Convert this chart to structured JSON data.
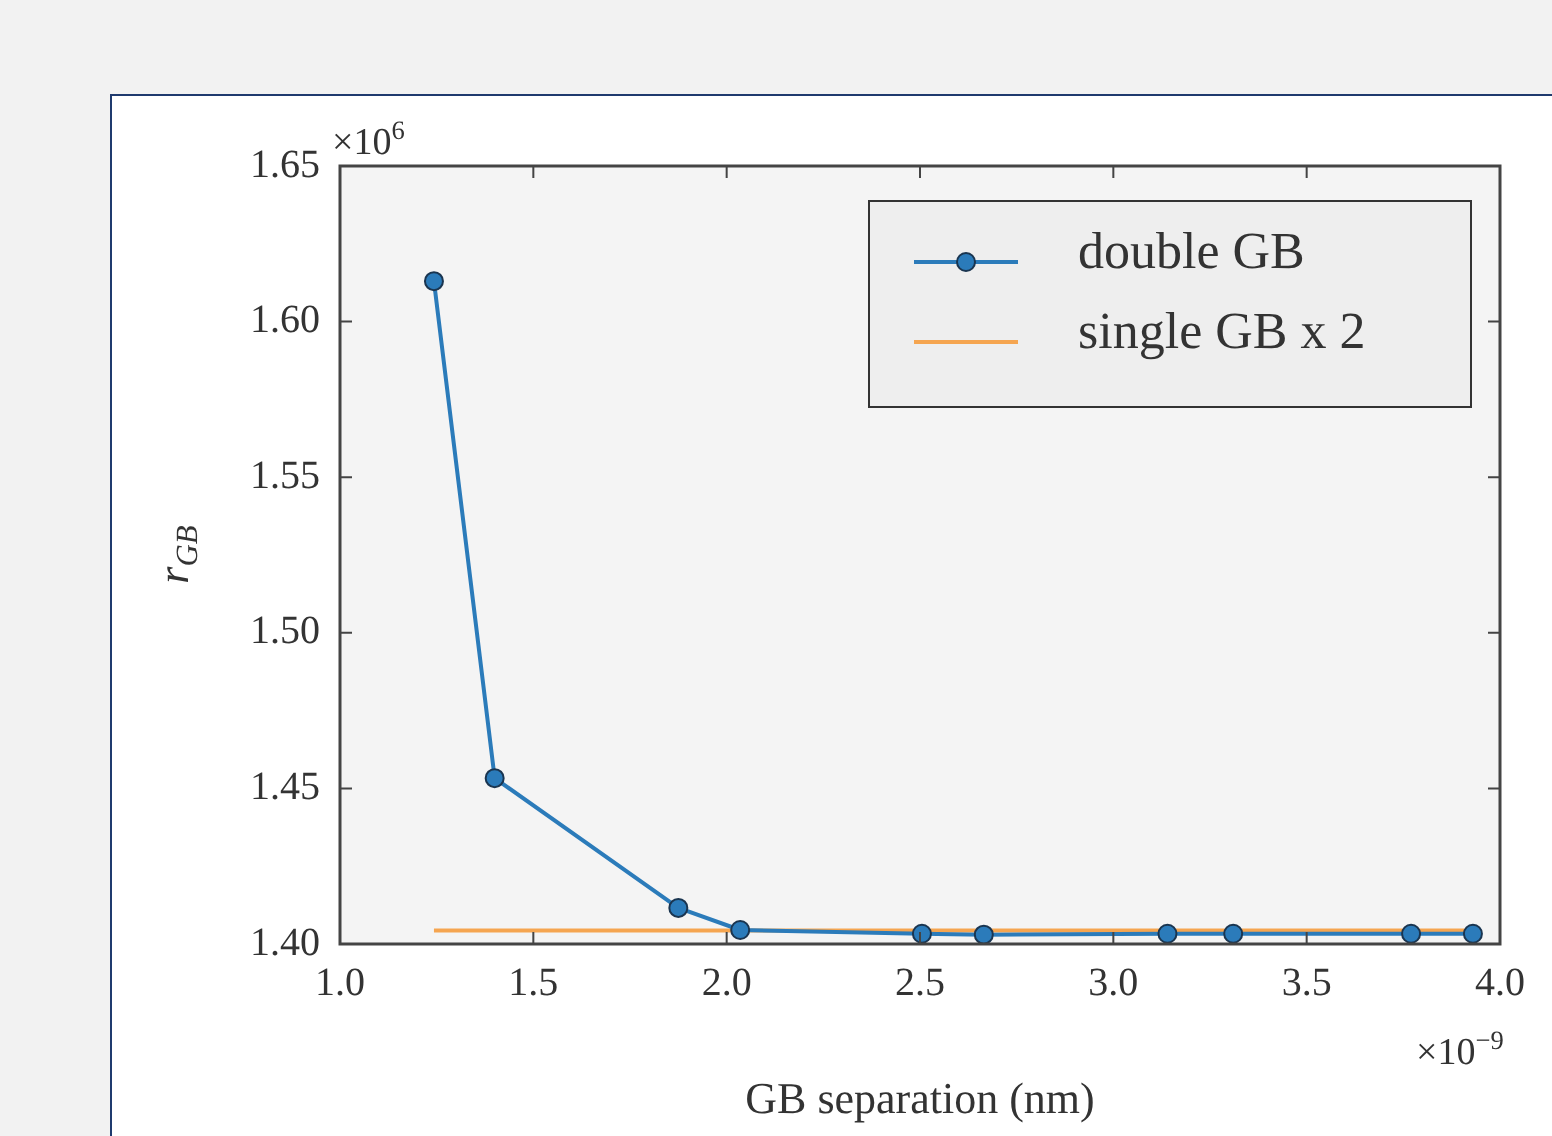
{
  "chart_data": {
    "type": "line",
    "xlabel": "GB separation (nm)",
    "ylabel": "r$_{GB}$",
    "annotations": [
      "×10$^{6}$",
      "×10$^{−9}$"
    ],
    "xlim": [
      1.0,
      4.0
    ],
    "xticks": [
      {
        "value": 1.0,
        "label": "1.0"
      },
      1.5,
      {
        "value": 2.0,
        "label": "2.0"
      },
      2.5,
      {
        "value": 3.0,
        "label": "3.0"
      },
      3.5,
      {
        "value": 4.0,
        "label": "4.0"
      }
    ],
    "ylim": [
      1.4,
      1.65
    ],
    "yticks": [
      {
        "value": 1.4,
        "label": "1.40"
      },
      1.45,
      {
        "value": 1.5,
        "label": "1.50"
      },
      1.55,
      {
        "value": 1.6,
        "label": "1.60"
      },
      1.65
    ],
    "grid": false,
    "legend": "top right",
    "series": [
      {
        "name": "double GB",
        "color": "#2b7bba",
        "marker": "circle",
        "x": [
          1.243,
          1.4,
          1.875,
          2.035,
          2.505,
          2.665,
          3.14,
          3.31,
          3.77,
          3.93
        ],
        "values": [
          1.613,
          1.4533,
          1.4116,
          1.4045,
          1.4033,
          1.403,
          1.4033,
          1.4033,
          1.4033,
          1.4033
        ]
      },
      {
        "name": "single GB x 2",
        "color": "#f5a550",
        "marker": "none",
        "x": [
          1.243,
          3.93
        ],
        "values": [
          1.4043,
          1.4043
        ]
      }
    ]
  }
}
